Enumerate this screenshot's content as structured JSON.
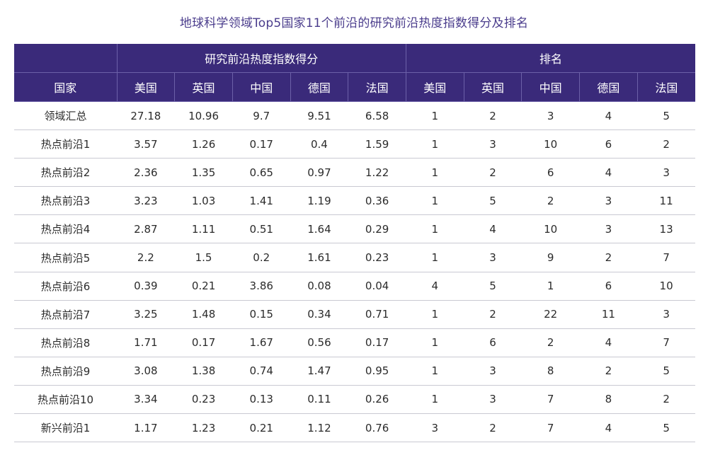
{
  "title": "地球科学领域Top5国家11个前沿的研究前沿热度指数得分及排名",
  "table": {
    "group_headers": [
      "研究前沿热度指数得分",
      "排名"
    ],
    "country_header": "国家",
    "score_columns": [
      "美国",
      "英国",
      "中国",
      "德国",
      "法国"
    ],
    "rank_columns": [
      "美国",
      "英国",
      "中国",
      "德国",
      "法国"
    ],
    "rows": [
      {
        "label": "领域汇总",
        "scores": [
          "27.18",
          "10.96",
          "9.7",
          "9.51",
          "6.58"
        ],
        "ranks": [
          "1",
          "2",
          "3",
          "4",
          "5"
        ]
      },
      {
        "label": "热点前沿1",
        "scores": [
          "3.57",
          "1.26",
          "0.17",
          "0.4",
          "1.59"
        ],
        "ranks": [
          "1",
          "3",
          "10",
          "6",
          "2"
        ]
      },
      {
        "label": "热点前沿2",
        "scores": [
          "2.36",
          "1.35",
          "0.65",
          "0.97",
          "1.22"
        ],
        "ranks": [
          "1",
          "2",
          "6",
          "4",
          "3"
        ]
      },
      {
        "label": "热点前沿3",
        "scores": [
          "3.23",
          "1.03",
          "1.41",
          "1.19",
          "0.36"
        ],
        "ranks": [
          "1",
          "5",
          "2",
          "3",
          "11"
        ]
      },
      {
        "label": "热点前沿4",
        "scores": [
          "2.87",
          "1.11",
          "0.51",
          "1.64",
          "0.29"
        ],
        "ranks": [
          "1",
          "4",
          "10",
          "3",
          "13"
        ]
      },
      {
        "label": "热点前沿5",
        "scores": [
          "2.2",
          "1.5",
          "0.2",
          "1.61",
          "0.23"
        ],
        "ranks": [
          "1",
          "3",
          "9",
          "2",
          "7"
        ]
      },
      {
        "label": "热点前沿6",
        "scores": [
          "0.39",
          "0.21",
          "3.86",
          "0.08",
          "0.04"
        ],
        "ranks": [
          "4",
          "5",
          "1",
          "6",
          "10"
        ]
      },
      {
        "label": "热点前沿7",
        "scores": [
          "3.25",
          "1.48",
          "0.15",
          "0.34",
          "0.71"
        ],
        "ranks": [
          "1",
          "2",
          "22",
          "11",
          "3"
        ]
      },
      {
        "label": "热点前沿8",
        "scores": [
          "1.71",
          "0.17",
          "1.67",
          "0.56",
          "0.17"
        ],
        "ranks": [
          "1",
          "6",
          "2",
          "4",
          "7"
        ]
      },
      {
        "label": "热点前沿9",
        "scores": [
          "3.08",
          "1.38",
          "0.74",
          "1.47",
          "0.95"
        ],
        "ranks": [
          "1",
          "3",
          "8",
          "2",
          "5"
        ]
      },
      {
        "label": "热点前沿10",
        "scores": [
          "3.34",
          "0.23",
          "0.13",
          "0.11",
          "0.26"
        ],
        "ranks": [
          "1",
          "3",
          "7",
          "8",
          "2"
        ]
      },
      {
        "label": "新兴前沿1",
        "scores": [
          "1.17",
          "1.23",
          "0.21",
          "1.12",
          "0.76"
        ],
        "ranks": [
          "3",
          "2",
          "7",
          "4",
          "5"
        ]
      }
    ]
  },
  "colors": {
    "header_bg": "#3a2a7a",
    "title_text": "#4a3c8c"
  }
}
